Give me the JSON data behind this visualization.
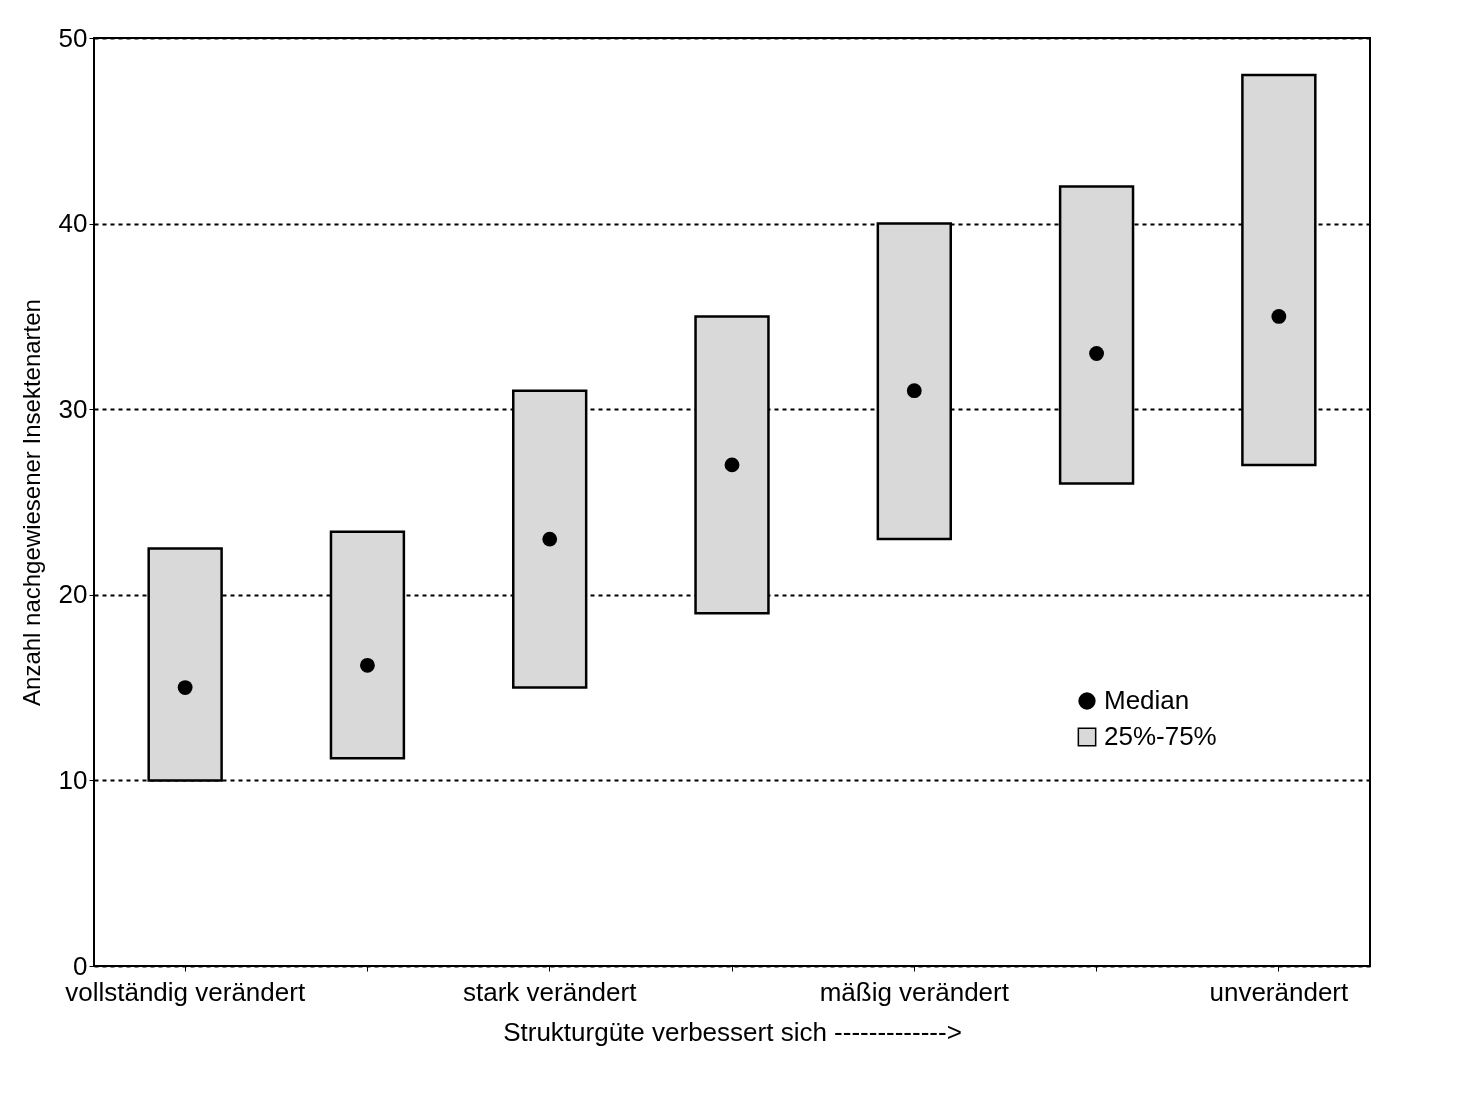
{
  "chart_data": {
    "type": "bar",
    "xlabel": "Strukturgüte verbessert sich ------------->",
    "ylabel": "Anzahl nachgewiesener Insektenarten",
    "categories": [
      "vollständig verändert",
      null,
      "stark verändert",
      null,
      "mäßig verändert",
      null,
      "unverändert"
    ],
    "series": [
      {
        "name": "25%-75%",
        "type": "bar",
        "color": "#d9d9d9",
        "base": [
          10,
          11.2,
          15,
          19,
          23,
          26,
          27
        ],
        "values": [
          12.5,
          12.2,
          16,
          16,
          17,
          16,
          21
        ]
      },
      {
        "name": "Median",
        "type": "scatter",
        "color": "#000000",
        "marker": "circle",
        "values": [
          15,
          16.2,
          23,
          27,
          31,
          33,
          35
        ]
      }
    ],
    "ylim": [
      0,
      50
    ],
    "yticks": [
      0,
      10,
      20,
      30,
      40,
      50
    ],
    "grid": "y",
    "legend": "bottom right"
  }
}
